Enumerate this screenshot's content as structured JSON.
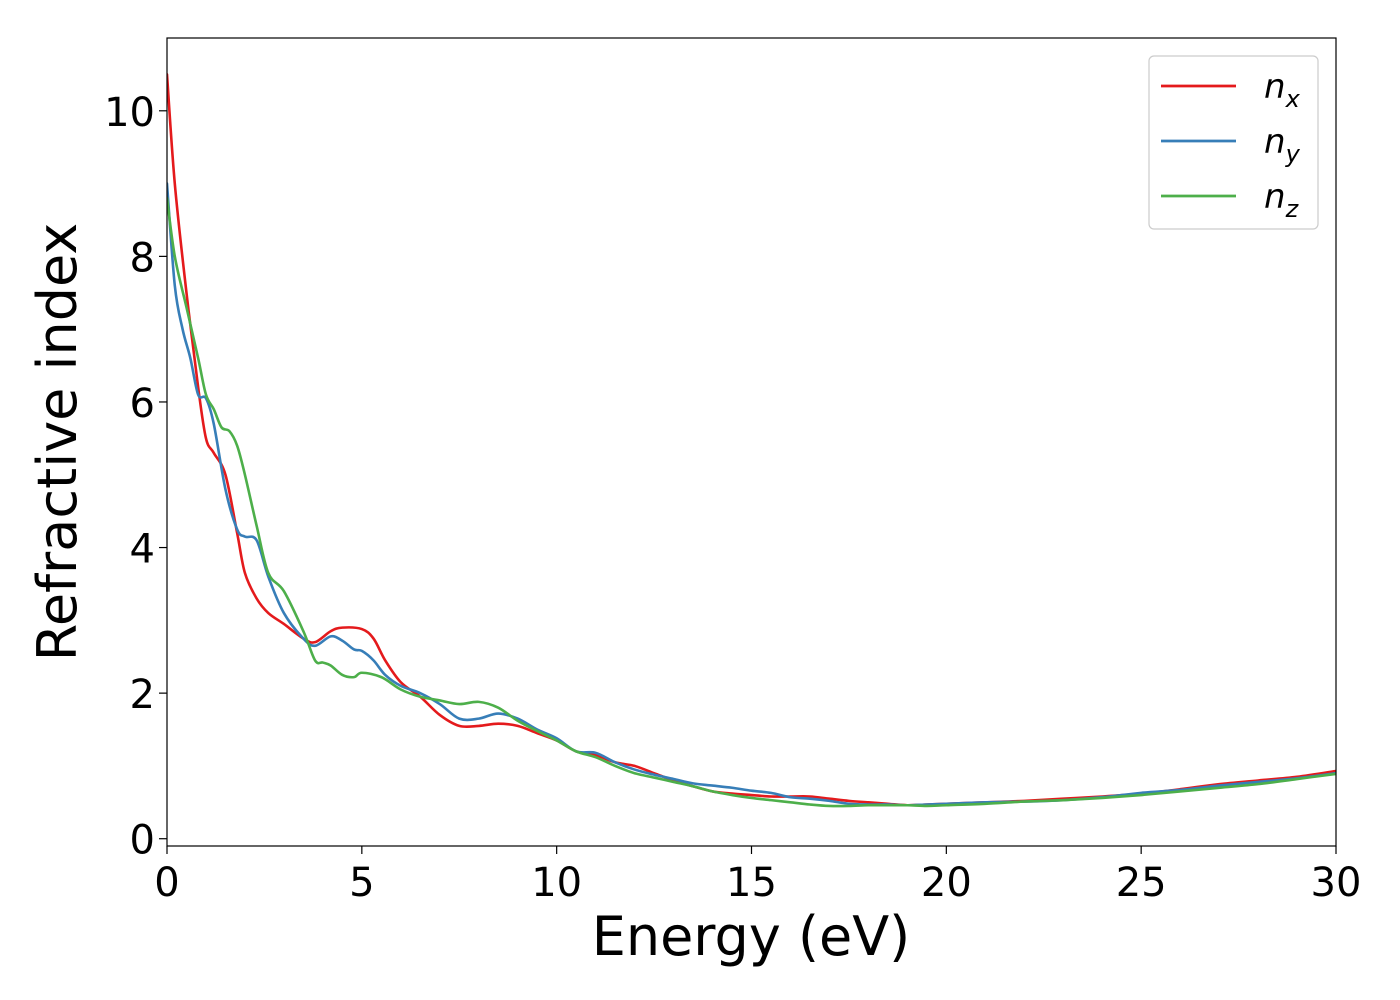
{
  "chart_data": {
    "type": "line",
    "title": "",
    "xlabel": "Energy (eV)",
    "ylabel": "Refractive index",
    "xlim": [
      0,
      30
    ],
    "ylim": [
      -0.1,
      11
    ],
    "xticks": [
      0,
      5,
      10,
      15,
      20,
      25,
      30
    ],
    "xtick_labels": [
      "0",
      "5",
      "10",
      "15",
      "20",
      "25",
      "30"
    ],
    "yticks": [
      0,
      2,
      4,
      6,
      8,
      10
    ],
    "ytick_labels": [
      "0",
      "2",
      "4",
      "6",
      "8",
      "10"
    ],
    "grid": false,
    "legend_position": "top-right",
    "series": [
      {
        "name": "n",
        "subscript": "x",
        "color": "#e41a1c",
        "x": [
          0.0,
          0.2,
          0.5,
          0.8,
          1.0,
          1.2,
          1.5,
          1.8,
          2.0,
          2.3,
          2.6,
          3.0,
          3.5,
          3.8,
          4.2,
          4.5,
          5.0,
          5.3,
          5.6,
          6.0,
          6.5,
          7.0,
          7.5,
          8.0,
          8.5,
          9.0,
          9.5,
          10.0,
          10.5,
          11.0,
          11.5,
          12.0,
          12.5,
          13.0,
          13.5,
          14.0,
          14.5,
          15.0,
          15.5,
          16.0,
          16.5,
          17.0,
          17.5,
          18.0,
          18.5,
          19.0,
          19.5,
          20.0,
          21.0,
          22.0,
          23.0,
          24.0,
          25.0,
          26.0,
          27.0,
          28.0,
          29.0,
          30.0
        ],
        "y": [
          10.5,
          9.0,
          7.5,
          6.2,
          5.5,
          5.3,
          5.0,
          4.2,
          3.65,
          3.3,
          3.1,
          2.95,
          2.75,
          2.7,
          2.85,
          2.9,
          2.88,
          2.75,
          2.45,
          2.15,
          1.95,
          1.7,
          1.55,
          1.55,
          1.58,
          1.55,
          1.45,
          1.35,
          1.2,
          1.15,
          1.05,
          1.0,
          0.9,
          0.8,
          0.72,
          0.65,
          0.62,
          0.6,
          0.58,
          0.58,
          0.58,
          0.55,
          0.52,
          0.5,
          0.48,
          0.46,
          0.47,
          0.48,
          0.5,
          0.52,
          0.55,
          0.58,
          0.62,
          0.68,
          0.75,
          0.8,
          0.85,
          0.93
        ]
      },
      {
        "name": "n",
        "subscript": "y",
        "color": "#377eb8",
        "x": [
          0.0,
          0.2,
          0.4,
          0.6,
          0.8,
          1.0,
          1.2,
          1.5,
          1.8,
          2.0,
          2.3,
          2.6,
          3.0,
          3.5,
          3.8,
          4.2,
          4.5,
          4.8,
          5.0,
          5.3,
          5.6,
          6.0,
          6.5,
          7.0,
          7.5,
          8.0,
          8.5,
          9.0,
          9.5,
          10.0,
          10.5,
          11.0,
          11.5,
          12.0,
          12.5,
          13.0,
          13.5,
          14.0,
          14.5,
          15.0,
          15.5,
          16.0,
          16.5,
          17.0,
          17.5,
          18.0,
          18.5,
          19.0,
          19.5,
          20.0,
          21.0,
          22.0,
          23.0,
          24.0,
          25.0,
          26.0,
          27.0,
          28.0,
          29.0,
          30.0
        ],
        "y": [
          9.0,
          7.6,
          7.0,
          6.6,
          6.1,
          6.05,
          5.7,
          4.8,
          4.25,
          4.15,
          4.1,
          3.6,
          3.1,
          2.75,
          2.65,
          2.78,
          2.72,
          2.6,
          2.58,
          2.45,
          2.25,
          2.1,
          2.0,
          1.85,
          1.65,
          1.65,
          1.72,
          1.65,
          1.5,
          1.38,
          1.2,
          1.18,
          1.05,
          0.95,
          0.88,
          0.82,
          0.76,
          0.73,
          0.7,
          0.66,
          0.63,
          0.57,
          0.55,
          0.52,
          0.48,
          0.47,
          0.47,
          0.46,
          0.47,
          0.48,
          0.5,
          0.51,
          0.53,
          0.57,
          0.63,
          0.67,
          0.73,
          0.78,
          0.83,
          0.9
        ]
      },
      {
        "name": "n",
        "subscript": "z",
        "color": "#4daf4a",
        "x": [
          0.0,
          0.2,
          0.5,
          0.8,
          1.0,
          1.2,
          1.4,
          1.6,
          1.8,
          2.0,
          2.3,
          2.6,
          3.0,
          3.5,
          3.8,
          4.0,
          4.2,
          4.5,
          4.8,
          5.0,
          5.5,
          6.0,
          6.5,
          7.0,
          7.5,
          8.0,
          8.5,
          9.0,
          9.5,
          10.0,
          10.5,
          11.0,
          11.5,
          12.0,
          12.5,
          13.0,
          13.5,
          14.0,
          14.5,
          15.0,
          15.5,
          16.0,
          16.5,
          17.0,
          17.5,
          18.0,
          18.5,
          19.0,
          19.5,
          20.0,
          21.0,
          22.0,
          23.0,
          24.0,
          25.0,
          26.0,
          27.0,
          28.0,
          29.0,
          30.0
        ],
        "y": [
          8.8,
          8.0,
          7.3,
          6.6,
          6.1,
          5.9,
          5.65,
          5.6,
          5.4,
          5.0,
          4.3,
          3.65,
          3.4,
          2.85,
          2.45,
          2.42,
          2.38,
          2.25,
          2.22,
          2.28,
          2.22,
          2.05,
          1.95,
          1.9,
          1.85,
          1.88,
          1.8,
          1.62,
          1.48,
          1.35,
          1.2,
          1.12,
          1.0,
          0.9,
          0.84,
          0.78,
          0.72,
          0.65,
          0.6,
          0.56,
          0.53,
          0.5,
          0.47,
          0.45,
          0.45,
          0.46,
          0.46,
          0.46,
          0.45,
          0.46,
          0.48,
          0.51,
          0.53,
          0.56,
          0.6,
          0.65,
          0.7,
          0.75,
          0.82,
          0.89
        ]
      }
    ]
  }
}
